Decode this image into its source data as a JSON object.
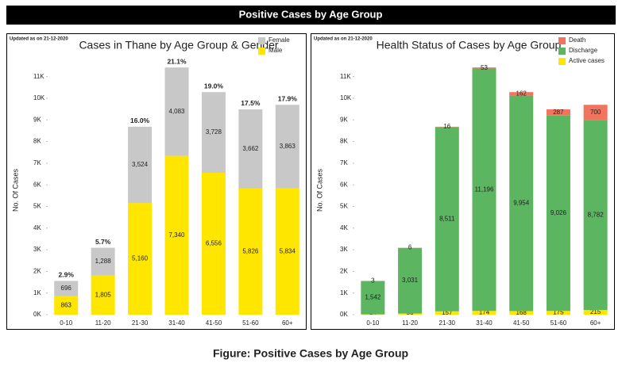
{
  "header": {
    "title": "Positive Cases by Age Group"
  },
  "caption": "Figure: Positive Cases by Age Group",
  "chart_data": [
    {
      "type": "bar",
      "stacked": true,
      "title": "Cases in Thane by Age Group & Gender",
      "note": "Updated as on 21-12-2020",
      "ylabel": "No. Of Cases",
      "legend": "top-right",
      "categories": [
        "0-10",
        "11-20",
        "21-30",
        "31-40",
        "41-50",
        "51-60",
        "60+"
      ],
      "series": [
        {
          "name": "Male",
          "color": "#ffe600",
          "values": [
            863,
            1805,
            5160,
            7340,
            6556,
            5826,
            5834
          ],
          "value_labels": [
            "863",
            "1,805",
            "5,160",
            "7,340",
            "6,556",
            "5,826",
            "5,834"
          ]
        },
        {
          "name": "Female",
          "color": "#c8c8c8",
          "values": [
            696,
            1288,
            3524,
            4083,
            3728,
            3662,
            3863
          ],
          "value_labels": [
            "696",
            "1,288",
            "3,524",
            "4,083",
            "3,728",
            "3,662",
            "3,863"
          ]
        }
      ],
      "annotations": [
        "2.9%",
        "5.7%",
        "16.0%",
        "21.1%",
        "19.0%",
        "17.5%",
        "17.9%"
      ],
      "ylim": [
        0,
        11500
      ],
      "yticks": [
        {
          "value": 0,
          "label": "0K"
        },
        {
          "value": 1000,
          "label": "1K"
        },
        {
          "value": 2000,
          "label": "2K"
        },
        {
          "value": 3000,
          "label": "3K"
        },
        {
          "value": 4000,
          "label": "4K"
        },
        {
          "value": 5000,
          "label": "5K"
        },
        {
          "value": 6000,
          "label": "6K"
        },
        {
          "value": 7000,
          "label": "7K"
        },
        {
          "value": 8000,
          "label": "8K"
        },
        {
          "value": 9000,
          "label": "9K"
        },
        {
          "value": 10000,
          "label": "10K"
        },
        {
          "value": 11000,
          "label": "11K"
        }
      ]
    },
    {
      "type": "bar",
      "stacked": true,
      "title": "Health Status of Cases by Age Group",
      "note": "Updated as on 21-12-2020",
      "ylabel": "No. Of Cases",
      "legend": "top-right",
      "categories": [
        "0-10",
        "11-20",
        "21-30",
        "31-40",
        "41-50",
        "51-60",
        "60+"
      ],
      "series": [
        {
          "name": "Active cases",
          "color": "#ffe600",
          "values": [
            14,
            56,
            157,
            174,
            168,
            175,
            215
          ]
        },
        {
          "name": "Discharge",
          "color": "#5cb560",
          "values": [
            1542,
            3031,
            8511,
            11196,
            9954,
            9026,
            8782
          ],
          "value_labels": [
            "1,542",
            "3,031",
            "8,511",
            "11,196",
            "9,954",
            "9,026",
            "8,782"
          ]
        },
        {
          "name": "Death",
          "color": "#f2735e",
          "values": [
            3,
            6,
            16,
            53,
            162,
            287,
            700
          ]
        }
      ],
      "ylim": [
        0,
        11500
      ],
      "yticks": [
        {
          "value": 0,
          "label": "0K"
        },
        {
          "value": 1000,
          "label": "1K"
        },
        {
          "value": 2000,
          "label": "2K"
        },
        {
          "value": 3000,
          "label": "3K"
        },
        {
          "value": 4000,
          "label": "4K"
        },
        {
          "value": 5000,
          "label": "5K"
        },
        {
          "value": 6000,
          "label": "6K"
        },
        {
          "value": 7000,
          "label": "7K"
        },
        {
          "value": 8000,
          "label": "8K"
        },
        {
          "value": 9000,
          "label": "9K"
        },
        {
          "value": 10000,
          "label": "10K"
        },
        {
          "value": 11000,
          "label": "11K"
        }
      ]
    }
  ]
}
